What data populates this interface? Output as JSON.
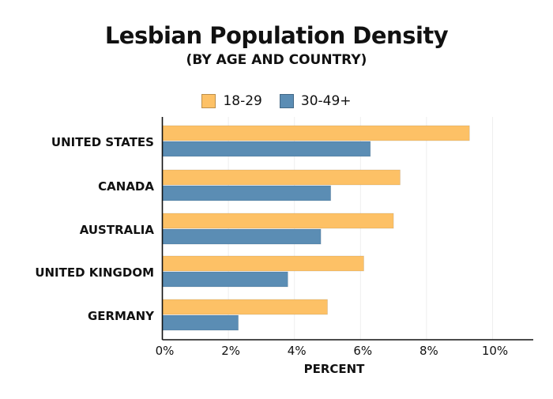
{
  "chart_data": {
    "type": "bar",
    "orientation": "horizontal",
    "title": "Lesbian Population Density",
    "subtitle": "(BY AGE AND COUNTRY)",
    "xlabel": "PERCENT",
    "ylabel": "",
    "categories": [
      "UNITED STATES",
      "CANADA",
      "AUSTRALIA",
      "UNITED KINGDOM",
      "GERMANY"
    ],
    "series": [
      {
        "name": "18-29",
        "color": "#FDC166",
        "values": [
          9.3,
          7.2,
          7.0,
          6.1,
          5.0
        ]
      },
      {
        "name": "30-49+",
        "color": "#5B8DB4",
        "values": [
          6.3,
          5.1,
          4.8,
          3.8,
          2.3
        ]
      }
    ],
    "xlim": [
      0,
      11.25
    ],
    "xticks": [
      0,
      2,
      4,
      6,
      8,
      10
    ],
    "xtick_labels": [
      "0%",
      "2%",
      "4%",
      "6%",
      "8%",
      "10%"
    ],
    "grid": "vertical",
    "legend_position": "top"
  }
}
